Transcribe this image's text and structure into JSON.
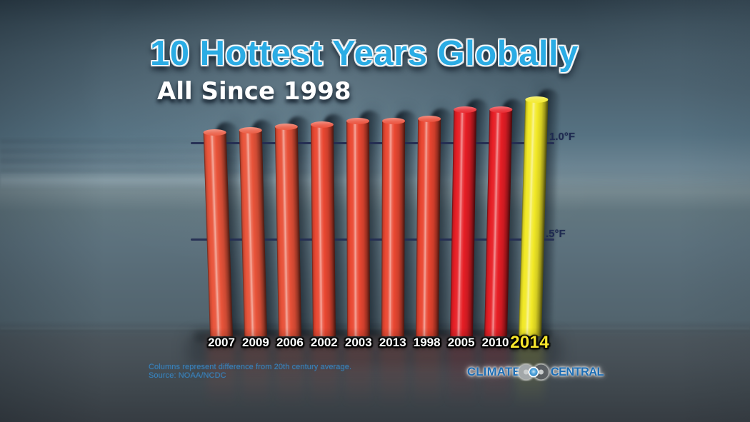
{
  "chart_data": {
    "type": "bar",
    "title": "10 Hottest Years Globally",
    "subtitle": "All Since 1998",
    "unit": "°F",
    "categories": [
      "2007",
      "2009",
      "2006",
      "2002",
      "2003",
      "2013",
      "1998",
      "2005",
      "2010",
      "2014"
    ],
    "values": [
      1.07,
      1.08,
      1.1,
      1.11,
      1.13,
      1.13,
      1.14,
      1.19,
      1.19,
      1.24
    ],
    "bar_colors": [
      "#e9543a",
      "#e9543a",
      "#e85138",
      "#ea4832",
      "#ea4832",
      "#ea4832",
      "#e94530",
      "#e71e25",
      "#e71e25",
      "#f2e926"
    ],
    "highlight_category": "2014",
    "ylim": [
      0,
      1.3
    ],
    "gridlines": [
      {
        "label": "1.0°F",
        "value": 1.0
      },
      {
        "label": ".5°F",
        "value": 0.5
      }
    ],
    "note": "Columns represent difference from 20th century average.",
    "source": "Source: NOAA/NCDC"
  },
  "style": {
    "title_color": "#2bace4",
    "subtitle_color": "#ffffff",
    "grid_color": "#242d52",
    "axis_label_color": "#1e2a50",
    "year_label_color": "#ffffff",
    "highlight_label_color": "#f8e62b",
    "note_color": "#3a80b8"
  },
  "branding": {
    "logo_left": "CLIMATE",
    "logo_right": "CENTRAL",
    "logo_text_color": "#1c6db4",
    "ring_left_color": "#a2a7a9",
    "ring_right_color": "#595e62",
    "ring_dot_color": "#2ea2da"
  }
}
